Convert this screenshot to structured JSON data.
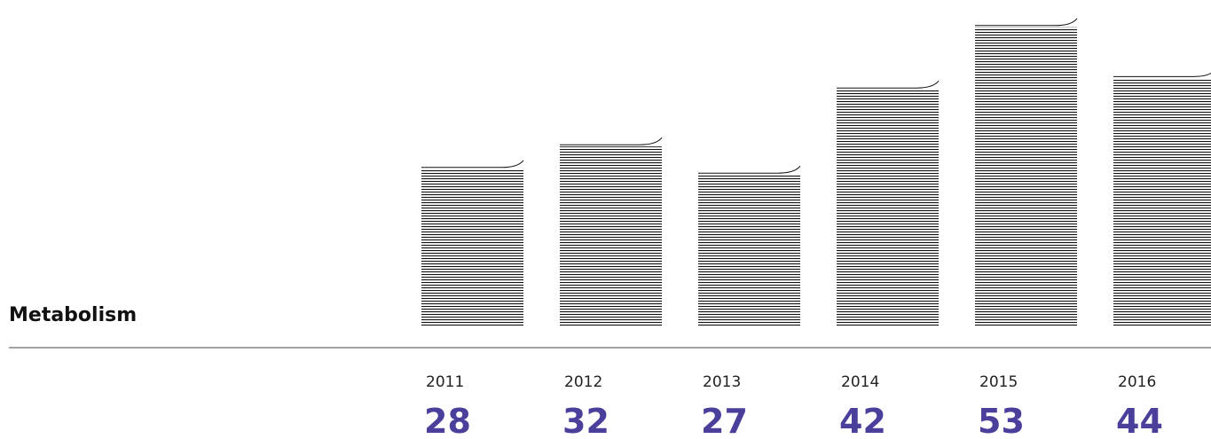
{
  "chart_data": {
    "type": "bar",
    "title": "Metabolism",
    "categories": [
      "2011",
      "2012",
      "2013",
      "2014",
      "2015",
      "2016"
    ],
    "values": [
      28,
      32,
      27,
      42,
      53,
      44
    ],
    "color": "#4b3f9c"
  }
}
